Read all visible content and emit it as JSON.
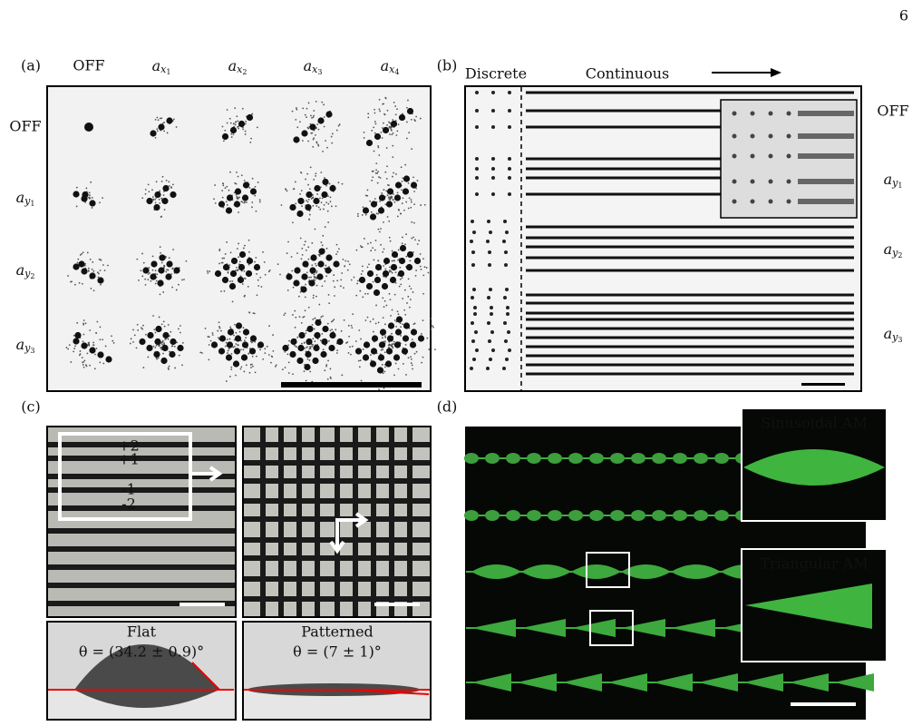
{
  "page_number": "6",
  "panel_a": {
    "label": "(a)",
    "columns": [
      {
        "text": "OFF"
      },
      {
        "base": "a",
        "sub": "x",
        "subsub": "1"
      },
      {
        "base": "a",
        "sub": "x",
        "subsub": "2"
      },
      {
        "base": "a",
        "sub": "x",
        "subsub": "3"
      },
      {
        "base": "a",
        "sub": "x",
        "subsub": "4"
      }
    ],
    "rows": [
      {
        "text": "OFF"
      },
      {
        "base": "a",
        "sub": "y",
        "subsub": "1"
      },
      {
        "base": "a",
        "sub": "y",
        "subsub": "2"
      },
      {
        "base": "a",
        "sub": "y",
        "subsub": "3"
      }
    ]
  },
  "panel_b": {
    "label": "(b)",
    "discrete": "Discrete",
    "continuous": "Continuous",
    "rows": [
      {
        "text": "OFF"
      },
      {
        "base": "a",
        "sub": "y",
        "subsub": "1"
      },
      {
        "base": "a",
        "sub": "y",
        "subsub": "2"
      },
      {
        "base": "a",
        "sub": "y",
        "subsub": "3"
      }
    ]
  },
  "panel_c": {
    "label": "(c)",
    "orders": [
      "+2",
      "+1",
      "-1",
      "-2"
    ],
    "flat": {
      "title": "Flat",
      "angle": "θ = (34.2 ± 0.9)°"
    },
    "patterned": {
      "title": "Patterned",
      "angle": "θ = (7 ± 1)°"
    }
  },
  "panel_d": {
    "label": "(d)",
    "insets": [
      "Sinusoidal AM",
      "Triangular AM"
    ]
  }
}
